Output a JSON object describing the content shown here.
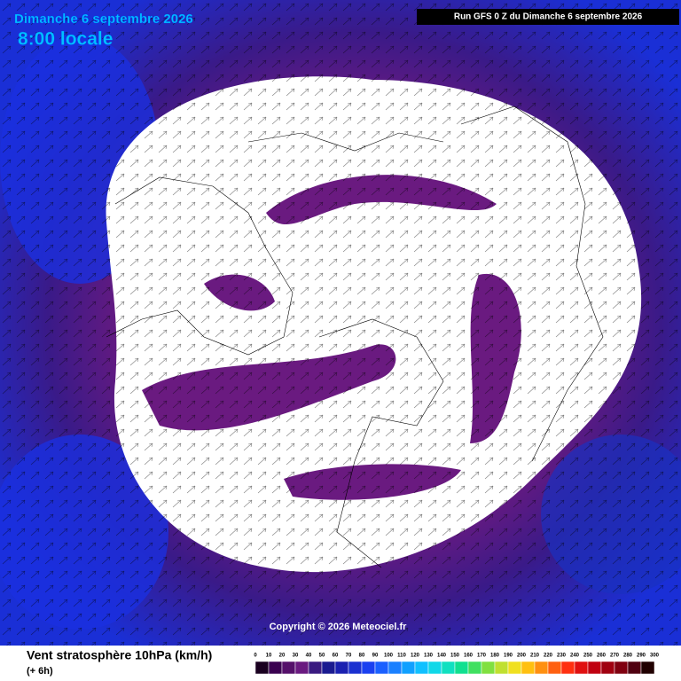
{
  "header": {
    "date": "Dimanche 6 septembre 2026",
    "time": "8:00 locale",
    "run": "Run GFS 0 Z du Dimanche 6 septembre 2026"
  },
  "copyright": "Copyright © 2026 Meteociel.fr",
  "footer": {
    "title": "Vent stratosphère 10hPa (km/h)",
    "subtitle": "(+ 6h)"
  },
  "legend": {
    "labels": [
      0,
      10,
      20,
      30,
      40,
      50,
      60,
      70,
      80,
      90,
      100,
      110,
      120,
      130,
      140,
      150,
      160,
      170,
      180,
      190,
      200,
      210,
      220,
      230,
      240,
      250,
      260,
      270,
      280,
      290,
      300
    ],
    "colors": [
      "#1a0020",
      "#3a0050",
      "#55106a",
      "#6a1a80",
      "#3a1a80",
      "#1a1a90",
      "#1a20b0",
      "#1a30d0",
      "#1a40f0",
      "#1a60ff",
      "#1a80ff",
      "#10a0ff",
      "#10c0ff",
      "#10d8e8",
      "#10e0c0",
      "#10e090",
      "#40e060",
      "#80e040",
      "#c0e030",
      "#f0e020",
      "#ffc010",
      "#ff9010",
      "#ff6010",
      "#ff3010",
      "#e01010",
      "#c00010",
      "#a00010",
      "#800010",
      "#500010",
      "#200000"
    ]
  }
}
